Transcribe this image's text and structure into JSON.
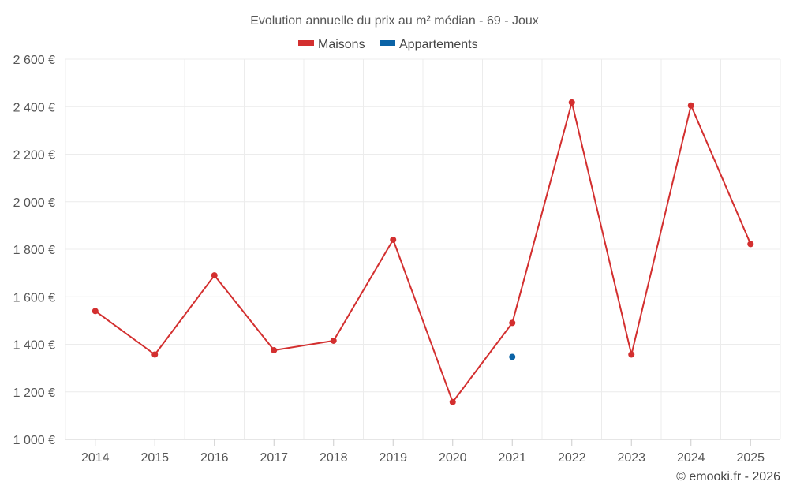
{
  "chart_data": {
    "type": "line",
    "title": "Evolution annuelle du prix au m² médian - 69 - Joux",
    "categories": [
      "2014",
      "2015",
      "2016",
      "2017",
      "2018",
      "2019",
      "2020",
      "2021",
      "2022",
      "2023",
      "2024",
      "2025"
    ],
    "series": [
      {
        "name": "Maisons",
        "color": "#d32f2f",
        "values": [
          1540,
          1357,
          1690,
          1375,
          1415,
          1840,
          1157,
          1490,
          2418,
          1357,
          2405,
          1822
        ]
      },
      {
        "name": "Appartements",
        "color": "#0b63a6",
        "values": [
          null,
          null,
          null,
          null,
          null,
          null,
          null,
          1347,
          null,
          null,
          null,
          null
        ]
      }
    ],
    "ylim": [
      1000,
      2600
    ],
    "yticks": [
      1000,
      1200,
      1400,
      1600,
      1800,
      2000,
      2200,
      2400,
      2600
    ],
    "ytick_labels": [
      "1 000 €",
      "1 200 €",
      "1 400 €",
      "1 600 €",
      "1 800 €",
      "2 000 €",
      "2 200 €",
      "2 400 €",
      "2 600 €"
    ],
    "grid": true,
    "legend_position": "top-center",
    "credit": "© emooki.fr - 2026"
  }
}
